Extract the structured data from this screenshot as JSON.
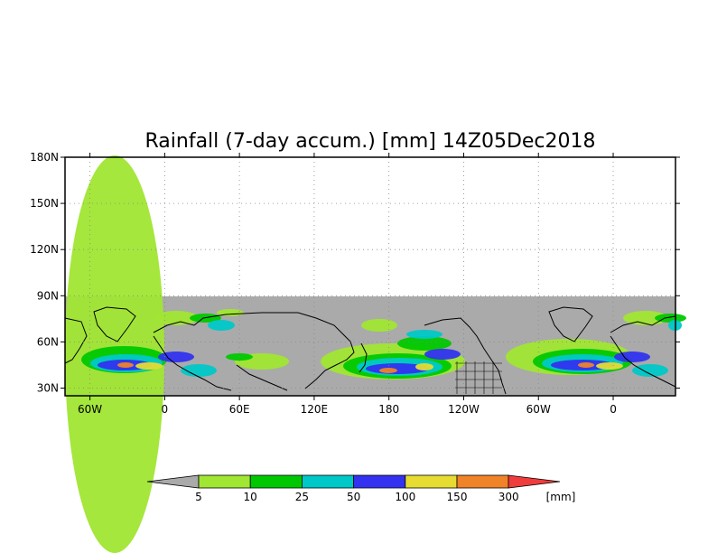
{
  "title": "Rainfall (7-day accum.) [mm] 14Z05Dec2018",
  "map": {
    "lat_ticks": [
      "180N",
      "150N",
      "120N",
      "90N",
      "60N",
      "30N"
    ],
    "lon_ticks": [
      "60W",
      "0",
      "60E",
      "120E",
      "180",
      "120W",
      "60W",
      "0"
    ],
    "lon_tick_values": [
      -60,
      0,
      60,
      120,
      180,
      240,
      300,
      360
    ],
    "lat_tick_values": [
      180,
      150,
      120,
      90,
      60,
      30
    ],
    "lon_range": [
      -80,
      410
    ],
    "lat_range": [
      25,
      180
    ],
    "data_coverage_lat": [
      25,
      90
    ],
    "grid": "dotted",
    "no_data_color": "#aaaaaa"
  },
  "colorbar": {
    "labels": [
      "5",
      "10",
      "25",
      "50",
      "100",
      "150",
      "300"
    ],
    "unit": "[mm]",
    "colors": [
      "#aaaaaa",
      "#a0e632",
      "#00c800",
      "#00c8c8",
      "#3232f0",
      "#e6dc32",
      "#f08228",
      "#f03c3c"
    ]
  }
}
